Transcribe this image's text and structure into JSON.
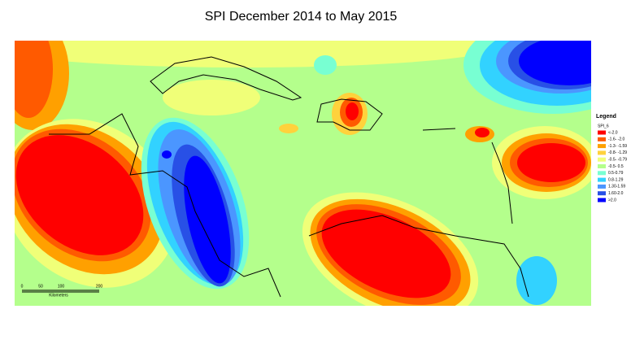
{
  "title": "SPI December 2014  to May 2015",
  "legend": {
    "title": "Legend",
    "subtitle": "SPI_6",
    "items": [
      {
        "label": "<-2.0",
        "color": "#ff0000"
      },
      {
        "label": "-1.6- -2.0",
        "color": "#ff5a00"
      },
      {
        "label": "-1.3- -1.59",
        "color": "#ffa000"
      },
      {
        "label": "-0.8- -1.29",
        "color": "#ffd23c"
      },
      {
        "label": "-0.5- -0.79",
        "color": "#f0ff78"
      },
      {
        "label": "-0.5- 0.5",
        "color": "#b4ff8c"
      },
      {
        "label": "0.5-0.79",
        "color": "#78ffd2"
      },
      {
        "label": "0.8-1.29",
        "color": "#32d2ff"
      },
      {
        "label": "1.30-1.59",
        "color": "#4b96ff"
      },
      {
        "label": "1.60-2.0",
        "color": "#2850e6"
      },
      {
        "label": ">2.0",
        "color": "#0000ff"
      }
    ]
  },
  "scale_bar": {
    "ticks": [
      "0",
      "50",
      "100",
      "200"
    ],
    "unit": "Kilometers"
  }
}
